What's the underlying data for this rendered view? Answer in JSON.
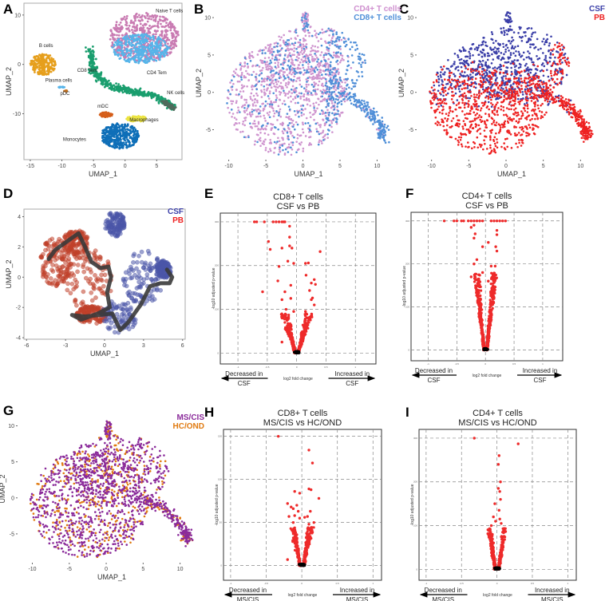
{
  "panels": {
    "A": "A",
    "B": "B",
    "C": "C",
    "D": "D",
    "E": "E",
    "F": "F",
    "G": "G",
    "H": "H",
    "I": "I"
  },
  "chart_data": [
    {
      "id": "A",
      "type": "scatter",
      "xlabel": "UMAP_1",
      "ylabel": "UMAP_2",
      "xlim": [
        -16,
        9
      ],
      "ylim": [
        -19.3,
        12.4
      ],
      "xticks": [
        -15,
        -10,
        -5,
        0,
        5
      ],
      "yticks": [
        10,
        0,
        -10
      ],
      "frame": true,
      "clusters": [
        {
          "name": "Naive T cells",
          "color": "#c97bb2",
          "shape": "ellipse",
          "center": [
            3,
            5.5
          ],
          "r": [
            5.5,
            5
          ],
          "n": 600,
          "label_at": [
            7,
            10.5
          ]
        },
        {
          "name": "CD4 Tem",
          "color": "#56b4e9",
          "shape": "ellipse",
          "center": [
            2.5,
            3.2
          ],
          "r": [
            4.6,
            3
          ],
          "n": 350,
          "label_at": [
            5,
            -2
          ]
        },
        {
          "name": "CD8 Tem",
          "color": "#1a9e6e",
          "shape": "path",
          "path": [
            [
              -5.5,
              3
            ],
            [
              -5,
              -1.5
            ],
            [
              -2.5,
              -4.5
            ],
            [
              1,
              -5.5
            ],
            [
              5,
              -6.5
            ],
            [
              7.5,
              -8.5
            ]
          ],
          "width": 1.7,
          "n": 500,
          "label_at": [
            -6,
            -1.5
          ]
        },
        {
          "name": "NK cells",
          "color": "#4f6b5c",
          "shape": "path",
          "path": [
            [
              6,
              -7.5
            ],
            [
              7.8,
              -9
            ]
          ],
          "width": 1,
          "n": 80,
          "label_at": [
            8,
            -6
          ]
        },
        {
          "name": "B cells",
          "color": "#e69f1c",
          "shape": "ellipse",
          "center": [
            -13,
            0
          ],
          "r": [
            2,
            2.2
          ],
          "n": 220,
          "label_at": [
            -12.5,
            3.5
          ]
        },
        {
          "name": "Plasma cells",
          "color": "#56b4e9",
          "shape": "ellipse",
          "center": [
            -10,
            -4.6
          ],
          "r": [
            0.5,
            0.15
          ],
          "n": 10,
          "label_at": [
            -10.5,
            -3.5
          ]
        },
        {
          "name": "pDC",
          "color": "#c07020",
          "shape": "ellipse",
          "center": [
            -9.3,
            -5.4
          ],
          "r": [
            0.4,
            0.12
          ],
          "n": 8,
          "label_at": [
            -9.5,
            -6.2
          ]
        },
        {
          "name": "mDC",
          "color": "#d55e1a",
          "shape": "ellipse",
          "center": [
            -3,
            -10.2
          ],
          "r": [
            1,
            0.5
          ],
          "n": 60,
          "label_at": [
            -3.5,
            -8.8
          ]
        },
        {
          "name": "Macrophages",
          "color": "#ece442",
          "shape": "ellipse",
          "center": [
            1.8,
            -11
          ],
          "r": [
            1.6,
            0.6
          ],
          "n": 80,
          "label_at": [
            3,
            -11.5
          ]
        },
        {
          "name": "Monocytes",
          "color": "#0f6fb8",
          "shape": "ellipse",
          "center": [
            -0.8,
            -14.5
          ],
          "r": [
            3,
            2.6
          ],
          "n": 400,
          "label_at": [
            -8,
            -15.5
          ]
        }
      ]
    },
    {
      "id": "B",
      "type": "scatter",
      "xlabel": "UMAP_1",
      "ylabel": "UMAP_2",
      "xlim": [
        -12,
        13.5
      ],
      "ylim": [
        -9,
        11.5
      ],
      "xticks": [
        -10,
        -5,
        0,
        5,
        10
      ],
      "yticks": [
        10,
        5,
        0,
        -5
      ],
      "frame": false,
      "legend": [
        {
          "label": "CD4+ T cells",
          "color": "#cf8fcf"
        },
        {
          "label": "CD8+ T cells",
          "color": "#4f8fd8"
        }
      ],
      "populations": [
        {
          "name": "CD4+ T cells",
          "color": "#cf95cf",
          "region": "main",
          "n": 1100
        },
        {
          "name": "CD8+ T cells",
          "color": "#4f8fd8",
          "region": "right",
          "n": 650
        }
      ]
    },
    {
      "id": "C",
      "type": "scatter",
      "xlabel": "UMAP_1",
      "ylabel": "UMAP_2",
      "xlim": [
        -12,
        13.5
      ],
      "ylim": [
        -9,
        11.5
      ],
      "xticks": [
        -10,
        -5,
        0,
        5,
        10
      ],
      "yticks": [
        10,
        5,
        0,
        -5
      ],
      "frame": false,
      "legend": [
        {
          "label": "CSF",
          "color": "#3b3fa8"
        },
        {
          "label": "PB",
          "color": "#ee2222"
        }
      ],
      "populations": [
        {
          "name": "CSF",
          "color": "#3b3fa8",
          "region": "top",
          "n": 800
        },
        {
          "name": "PB",
          "color": "#ee2222",
          "region": "bottom",
          "n": 1100
        }
      ]
    },
    {
      "id": "D",
      "type": "scatter",
      "xlabel": "UMAP_1",
      "ylabel": "UMAP_2",
      "xlim": [
        -6.2,
        6.2
      ],
      "ylim": [
        -4.1,
        4.5
      ],
      "xticks": [
        -6,
        -3,
        0,
        3,
        6
      ],
      "yticks": [
        4,
        2,
        0,
        -2,
        -4
      ],
      "frame": true,
      "legend": [
        {
          "label": "CSF",
          "color": "#3b3fa8"
        },
        {
          "label": "PB",
          "color": "#ee2222"
        }
      ],
      "groups": [
        {
          "name": "PB",
          "color": "#c0402a",
          "blobs": [
            [
              -3.8,
              1,
              1.2,
              1.6
            ],
            [
              -1.2,
              -0.2,
              1.8,
              2.2
            ],
            [
              -2.2,
              2.3,
              1,
              0.8
            ],
            [
              -1,
              -2.5,
              1.2,
              0.6
            ]
          ],
          "n": 500
        },
        {
          "name": "CSF",
          "color": "#4a55a8",
          "blobs": [
            [
              0.8,
              3.5,
              0.8,
              0.8
            ],
            [
              3,
              0,
              1.6,
              1.8
            ],
            [
              1,
              -2.6,
              1.5,
              1.1
            ],
            [
              4.5,
              0.5,
              0.6,
              0.6
            ]
          ],
          "n": 420
        }
      ],
      "trajectory": [
        [
          -4.3,
          1.2
        ],
        [
          -3.8,
          1.8
        ],
        [
          -2.5,
          2.6
        ],
        [
          -2,
          2.9
        ],
        [
          -1.5,
          2
        ],
        [
          -1,
          1
        ],
        [
          -0.3,
          0.6
        ],
        [
          0.3,
          0.7
        ],
        [
          0.5,
          0
        ],
        [
          0.2,
          -1
        ],
        [
          0.4,
          -2
        ],
        [
          -0.5,
          -2.4
        ],
        [
          -1.8,
          -2.8
        ],
        [
          -2.5,
          -2.5
        ],
        [
          -1.5,
          -2.6
        ],
        [
          0.6,
          -2.4
        ],
        [
          1.2,
          -3.5
        ],
        [
          1.8,
          -3
        ],
        [
          2.8,
          -1.8
        ],
        [
          3.5,
          -0.6
        ],
        [
          4.3,
          -0.4
        ],
        [
          5,
          -0.4
        ],
        [
          5.2,
          0
        ],
        [
          4.8,
          0.5
        ]
      ]
    },
    {
      "id": "E",
      "type": "scatter",
      "title": [
        "CD8+ T cells",
        "CSF vs PB"
      ],
      "xlabel": "log2 fold change",
      "ylabel": "-log10 adjusted p-value",
      "xlim": [
        -1.3,
        1.35
      ],
      "ylim": [
        -25,
        320
      ],
      "xticks": [
        -1.0,
        -0.5,
        0.0,
        0.5,
        1.0
      ],
      "yticks": [
        0,
        100,
        200,
        300
      ],
      "cap": 300,
      "bulk": {
        "n": 500,
        "max_y": 90,
        "spread": 0.22
      },
      "points": [
        [
          -0.72,
          300
        ],
        [
          -0.68,
          300
        ],
        [
          -0.55,
          300
        ],
        [
          -0.4,
          300
        ],
        [
          -0.35,
          300
        ],
        [
          -0.3,
          300
        ],
        [
          -0.25,
          300
        ],
        [
          -0.22,
          300
        ],
        [
          -0.2,
          300
        ],
        [
          -0.12,
          290
        ],
        [
          -0.48,
          255
        ],
        [
          -0.45,
          237
        ],
        [
          -0.12,
          265
        ],
        [
          -0.12,
          245
        ],
        [
          -0.25,
          240
        ],
        [
          -0.08,
          240
        ],
        [
          0.4,
          232
        ],
        [
          -0.58,
          140
        ],
        [
          -0.3,
          198
        ],
        [
          -0.15,
          210
        ],
        [
          -0.05,
          205
        ],
        [
          0.15,
          205
        ],
        [
          0.2,
          206
        ],
        [
          0.16,
          178
        ],
        [
          0.3,
          168
        ],
        [
          0.25,
          160
        ],
        [
          0.32,
          157
        ],
        [
          -0.32,
          165
        ],
        [
          -0.1,
          155
        ],
        [
          -0.2,
          140
        ],
        [
          -0.1,
          125
        ],
        [
          0.22,
          143
        ],
        [
          -0.25,
          122
        ],
        [
          0.25,
          122
        ],
        [
          0.3,
          110
        ],
        [
          -0.18,
          100
        ],
        [
          -0.05,
          95
        ],
        [
          0.15,
          95
        ],
        [
          -0.25,
          25
        ],
        [
          0.27,
          126
        ]
      ],
      "annotations": {
        "left": [
          "Decreased in",
          "CSF"
        ],
        "right": [
          "Increased in",
          "CSF"
        ]
      }
    },
    {
      "id": "F",
      "type": "scatter",
      "title": [
        "CD4+ T cells",
        "CSF vs PB"
      ],
      "xlabel": "log2 fold change",
      "ylabel": "-log10 adjusted p-value",
      "xlim": [
        -1.3,
        1.35
      ],
      "ylim": [
        -25,
        320
      ],
      "xticks": [
        -1.0,
        -0.5,
        0.0,
        0.5,
        1.0
      ],
      "yticks": [
        0,
        100,
        200,
        300
      ],
      "cap": 300,
      "bulk": {
        "n": 650,
        "max_y": 180,
        "spread": 0.16
      },
      "points": [
        [
          -0.72,
          300
        ],
        [
          -0.55,
          300
        ],
        [
          -0.5,
          300
        ],
        [
          -0.42,
          300
        ],
        [
          -0.38,
          300
        ],
        [
          -0.3,
          300
        ],
        [
          -0.25,
          300
        ],
        [
          -0.2,
          300
        ],
        [
          -0.15,
          300
        ],
        [
          -0.1,
          300
        ],
        [
          -0.05,
          300
        ],
        [
          0.1,
          300
        ],
        [
          0.15,
          300
        ],
        [
          0.2,
          300
        ],
        [
          0.25,
          300
        ],
        [
          0.3,
          300
        ],
        [
          0.35,
          300
        ],
        [
          -0.2,
          290
        ],
        [
          -0.25,
          285
        ],
        [
          -0.18,
          270
        ],
        [
          -0.2,
          260
        ],
        [
          0.2,
          278
        ],
        [
          0.2,
          268
        ],
        [
          0.05,
          250
        ],
        [
          0.18,
          240
        ],
        [
          0.2,
          230
        ],
        [
          -0.05,
          240
        ],
        [
          -0.15,
          210
        ],
        [
          -0.2,
          200
        ],
        [
          0.1,
          195
        ],
        [
          0.17,
          195
        ],
        [
          -0.05,
          180
        ],
        [
          0.05,
          160
        ],
        [
          -0.25,
          170
        ],
        [
          0.15,
          170
        ]
      ],
      "annotations": {
        "left": [
          "Decreased in",
          "CSF"
        ],
        "right": [
          "Increased in",
          "CSF"
        ]
      }
    },
    {
      "id": "G",
      "type": "scatter",
      "xlabel": "UMAP_1",
      "ylabel": "UMAP_2",
      "xlim": [
        -12,
        13.5
      ],
      "ylim": [
        -9,
        11.5
      ],
      "xticks": [
        -10,
        -5,
        0,
        5,
        10
      ],
      "yticks": [
        10,
        5,
        0,
        -5
      ],
      "frame": false,
      "legend": [
        {
          "label": "MS/CIS",
          "color": "#8a2a9a"
        },
        {
          "label": "HC/OND",
          "color": "#e07a10"
        }
      ],
      "populations": [
        {
          "name": "HC/OND",
          "color": "#e07a10",
          "region": "all",
          "n": 500
        },
        {
          "name": "MS/CIS",
          "color": "#8a2a9a",
          "region": "all",
          "n": 1300
        }
      ]
    },
    {
      "id": "H",
      "type": "scatter",
      "title": [
        "CD8+ T cells",
        "MS/CIS vs HC/OND"
      ],
      "xlabel": "log2 fold change",
      "ylabel": "-log10 adjusted p-value",
      "xlim": [
        -1.1,
        1.12
      ],
      "ylim": [
        -17,
        158
      ],
      "xticks": [
        -1.0,
        -0.5,
        0.0,
        0.5,
        1.0
      ],
      "yticks": [
        0,
        50,
        100,
        150
      ],
      "cap": 150,
      "bulk": {
        "n": 450,
        "max_y": 45,
        "spread": 0.12
      },
      "points": [
        [
          -0.33,
          150
        ],
        [
          0.1,
          134
        ],
        [
          0.15,
          119
        ],
        [
          0.1,
          89
        ],
        [
          0.13,
          88
        ],
        [
          0.24,
          78
        ],
        [
          -0.1,
          86
        ],
        [
          -0.03,
          84
        ],
        [
          -0.2,
          72
        ],
        [
          -0.15,
          68
        ],
        [
          -0.12,
          66
        ],
        [
          -0.07,
          70
        ],
        [
          -0.05,
          63
        ],
        [
          0.12,
          63
        ],
        [
          -0.1,
          58
        ],
        [
          -0.18,
          57
        ],
        [
          -0.03,
          55
        ],
        [
          0.04,
          56
        ],
        [
          0.08,
          57
        ],
        [
          0.17,
          50
        ],
        [
          0.1,
          48
        ],
        [
          -0.12,
          50
        ],
        [
          -0.2,
          7
        ]
      ],
      "annotations": {
        "left": [
          "Decreased in",
          "MS/CIS"
        ],
        "right": [
          "Increased in",
          "MS/CIS"
        ]
      }
    },
    {
      "id": "I",
      "type": "scatter",
      "title": [
        "CD4+ T cells",
        "MS/CIS vs HC/OND"
      ],
      "xlabel": "log2 fold change",
      "ylabel": "-log10 adjusted p-value",
      "xlim": [
        -1.1,
        1.12
      ],
      "ylim": [
        -25,
        320
      ],
      "xticks": [
        -1.0,
        -0.5,
        0.0,
        0.5,
        1.0
      ],
      "yticks": [
        0,
        100,
        200,
        300
      ],
      "cap": 300,
      "bulk": {
        "n": 400,
        "max_y": 95,
        "spread": 0.1
      },
      "points": [
        [
          -0.32,
          300
        ],
        [
          0.3,
          287
        ],
        [
          0.03,
          260
        ],
        [
          0.02,
          240
        ],
        [
          0.05,
          200
        ],
        [
          0.02,
          185
        ],
        [
          0.04,
          178
        ],
        [
          -0.03,
          150
        ],
        [
          0.05,
          160
        ],
        [
          0.03,
          135
        ],
        [
          -0.05,
          120
        ],
        [
          -0.02,
          110
        ],
        [
          0.04,
          115
        ],
        [
          -0.08,
          100
        ],
        [
          0.06,
          105
        ]
      ],
      "annotations": {
        "left": [
          "Decreased in",
          "MS/CIS"
        ],
        "right": [
          "Increased in",
          "MS/CIS"
        ]
      }
    }
  ]
}
